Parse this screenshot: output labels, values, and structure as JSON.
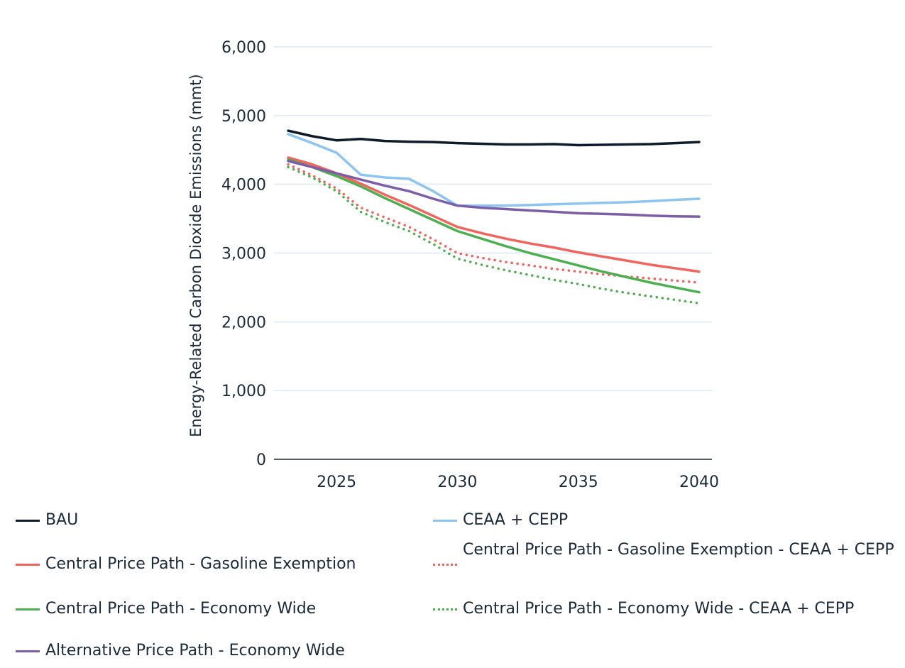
{
  "chart_data": {
    "type": "line",
    "title": "",
    "xlabel": "",
    "ylabel": "Energy-Related Carbon Dioxide Emissions (mmt)",
    "ylim": [
      0,
      6000
    ],
    "xlim": [
      2022.4,
      2040.6
    ],
    "yticks": [
      0,
      1000,
      2000,
      3000,
      4000,
      5000,
      6000
    ],
    "ytick_labels": [
      "0",
      "1,000",
      "2,000",
      "3,000",
      "4,000",
      "5,000",
      "6,000"
    ],
    "xticks": [
      2025,
      2030,
      2035,
      2040
    ],
    "xtick_labels": [
      "2025",
      "2030",
      "2035",
      "2040"
    ],
    "grid": "horizontal",
    "legend_position": "bottom",
    "x": [
      2023,
      2024,
      2025,
      2026,
      2027,
      2028,
      2029,
      2030,
      2031,
      2032,
      2033,
      2034,
      2035,
      2036,
      2037,
      2038,
      2039,
      2040
    ],
    "series": [
      {
        "name": "BAU",
        "color": "#0d1b2a",
        "style": "solid",
        "values": [
          4780,
          4700,
          4640,
          4660,
          4630,
          4620,
          4615,
          4600,
          4590,
          4580,
          4580,
          4585,
          4570,
          4575,
          4580,
          4585,
          4600,
          4615
        ]
      },
      {
        "name": "CEAA + CEPP",
        "color": "#8cc4f2",
        "style": "solid",
        "values": [
          4730,
          4600,
          4460,
          4140,
          4100,
          4080,
          3900,
          3690,
          3690,
          3690,
          3700,
          3710,
          3720,
          3730,
          3740,
          3755,
          3775,
          3790
        ]
      },
      {
        "name": "Central Price Path - Gasoline Exemption",
        "color": "#f2635c",
        "style": "solid",
        "values": [
          4390,
          4290,
          4160,
          4010,
          3850,
          3700,
          3540,
          3380,
          3290,
          3210,
          3140,
          3080,
          3010,
          2950,
          2890,
          2830,
          2780,
          2730
        ]
      },
      {
        "name": "Central Price Path - Gasoline Exemption - CEAA + CEPP",
        "color": "#f2635c",
        "style": "dotted",
        "values": [
          4290,
          4130,
          3940,
          3660,
          3520,
          3380,
          3200,
          3000,
          2930,
          2870,
          2820,
          2770,
          2730,
          2690,
          2660,
          2630,
          2600,
          2570
        ]
      },
      {
        "name": "Central Price Path - Economy Wide",
        "color": "#4caf50",
        "style": "solid",
        "values": [
          4360,
          4250,
          4120,
          3970,
          3800,
          3640,
          3480,
          3320,
          3210,
          3100,
          3000,
          2910,
          2820,
          2730,
          2650,
          2570,
          2500,
          2430
        ]
      },
      {
        "name": "Central Price Path - Economy Wide - CEAA + CEPP",
        "color": "#4caf50",
        "style": "dotted",
        "values": [
          4250,
          4100,
          3900,
          3600,
          3450,
          3320,
          3130,
          2920,
          2830,
          2750,
          2680,
          2610,
          2550,
          2480,
          2420,
          2370,
          2320,
          2270
        ]
      },
      {
        "name": "Alternative Price Path - Economy Wide",
        "color": "#7b5ea7",
        "style": "solid",
        "values": [
          4340,
          4250,
          4160,
          4070,
          3980,
          3900,
          3790,
          3690,
          3660,
          3640,
          3620,
          3600,
          3580,
          3570,
          3560,
          3545,
          3535,
          3530
        ]
      }
    ]
  },
  "legend": {
    "items": [
      {
        "label": "BAU",
        "color": "#0d1b2a",
        "style": "solid"
      },
      {
        "label": "CEAA + CEPP",
        "color": "#8cc4f2",
        "style": "solid"
      },
      {
        "label": "Central Price Path - Gasoline Exemption",
        "color": "#f2635c",
        "style": "solid"
      },
      {
        "label": "Central Price Path - Gasoline Exemption - CEAA + CEPP",
        "color": "#f2635c",
        "style": "dotted"
      },
      {
        "label": "Central Price Path - Economy Wide",
        "color": "#4caf50",
        "style": "solid"
      },
      {
        "label": "Central Price Path - Economy Wide - CEAA + CEPP",
        "color": "#4caf50",
        "style": "dotted"
      },
      {
        "label": "Alternative Price Path - Economy Wide",
        "color": "#7b5ea7",
        "style": "solid"
      }
    ]
  }
}
